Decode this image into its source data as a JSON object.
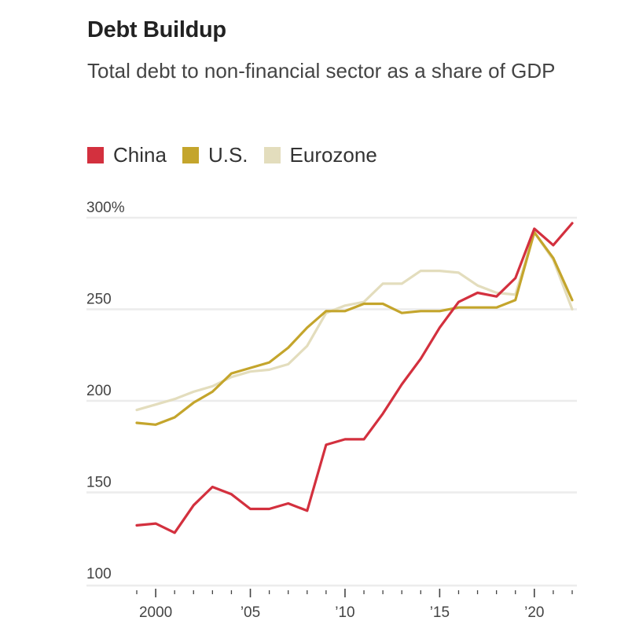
{
  "chart_data": {
    "type": "line",
    "title": "Debt Buildup",
    "subtitle": "Total debt to non-financial sector as a share of GDP",
    "xlabel": "",
    "ylabel": "",
    "ylim": [
      100,
      300
    ],
    "xlim": [
      1999,
      2022
    ],
    "y_ticks": [
      {
        "value": 300,
        "label": "300%"
      },
      {
        "value": 250,
        "label": "250"
      },
      {
        "value": 200,
        "label": "200"
      },
      {
        "value": 150,
        "label": "150"
      },
      {
        "value": 100,
        "label": "100"
      }
    ],
    "x_ticks": [
      {
        "value": 2000,
        "label": "2000"
      },
      {
        "value": 2005,
        "label": "’05"
      },
      {
        "value": 2010,
        "label": "’10"
      },
      {
        "value": 2015,
        "label": "’15"
      },
      {
        "value": 2020,
        "label": "’20"
      }
    ],
    "grid": true,
    "legend_position": "top-left",
    "x": [
      1999,
      2000,
      2001,
      2002,
      2003,
      2004,
      2005,
      2006,
      2007,
      2008,
      2009,
      2010,
      2011,
      2012,
      2013,
      2014,
      2015,
      2016,
      2017,
      2018,
      2019,
      2020,
      2021,
      2022
    ],
    "series": [
      {
        "name": "Eurozone",
        "color": "#e3ddbd",
        "values": [
          195,
          198,
          201,
          205,
          208,
          213,
          216,
          217,
          220,
          230,
          248,
          252,
          254,
          264,
          264,
          271,
          271,
          270,
          263,
          259,
          258,
          292,
          277,
          250
        ]
      },
      {
        "name": "U.S.",
        "color": "#c4a52c",
        "values": [
          188,
          187,
          191,
          199,
          205,
          215,
          218,
          221,
          229,
          240,
          249,
          249,
          253,
          253,
          248,
          249,
          249,
          251,
          251,
          251,
          255,
          292,
          278,
          255
        ]
      },
      {
        "name": "China",
        "color": "#d3303e",
        "values": [
          132,
          133,
          128,
          143,
          153,
          149,
          141,
          141,
          144,
          140,
          176,
          179,
          179,
          193,
          209,
          223,
          240,
          254,
          259,
          257,
          267,
          294,
          285,
          297
        ]
      }
    ],
    "legend": [
      {
        "name": "China",
        "color": "#d3303e"
      },
      {
        "name": "U.S.",
        "color": "#c4a52c"
      },
      {
        "name": "Eurozone",
        "color": "#e3ddbd"
      }
    ]
  }
}
